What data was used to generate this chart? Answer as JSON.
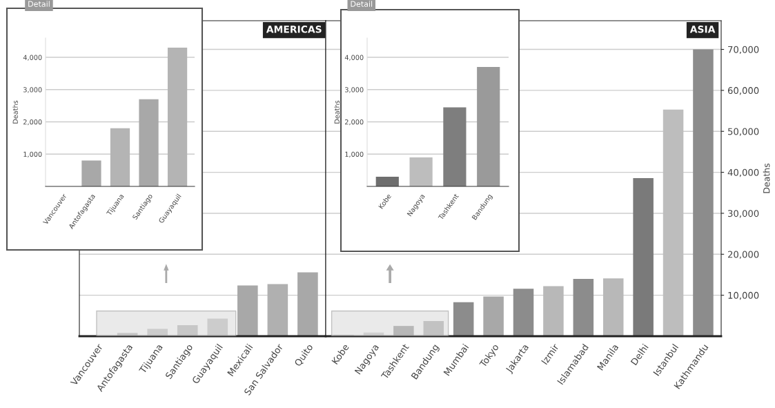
{
  "chart_data": [
    {
      "type": "bar",
      "title": "AMERICAS",
      "categories": [
        "Vancouver",
        "Antofagasta",
        "Tijuana",
        "Santiago",
        "Guayaquil",
        "Mexicali",
        "San Salvador",
        "Quito"
      ],
      "values": [
        0,
        800,
        1800,
        2700,
        4300,
        12400,
        12700,
        15600
      ],
      "colors": [
        "#b4b4b4",
        "#a8a8a8",
        "#b4b4b4",
        "#a8a8a8",
        "#b4b4b4",
        "#a8a8a8",
        "#b0b0b0",
        "#a8a8a8"
      ],
      "ylim": [
        0,
        77000
      ],
      "yticks": [
        10000,
        20000,
        30000,
        40000,
        50000,
        60000,
        70000
      ],
      "tick_labels": "x",
      "grid": "y"
    },
    {
      "type": "bar",
      "title": "ASIA",
      "ylabel": "Deaths",
      "categories": [
        "Kobe",
        "Nagoya",
        "Tashkent",
        "Bandung",
        "Mumbai",
        "Tokyo",
        "Jakarta",
        "Izmir",
        "Islamabad",
        "Manila",
        "Delhi",
        "Istanbul",
        "Kathmandu"
      ],
      "values": [
        300,
        900,
        2500,
        3700,
        8300,
        9700,
        11600,
        12200,
        14000,
        14100,
        38600,
        55300,
        70000
      ],
      "colors": [
        "#6e6e6e",
        "#bdbdbd",
        "#7e7e7e",
        "#9a9a9a",
        "#8c8c8c",
        "#a8a8a8",
        "#8c8c8c",
        "#b8b8b8",
        "#8c8c8c",
        "#b8b8b8",
        "#7a7a7a",
        "#bdbdbd",
        "#8c8c8c"
      ],
      "ylim": [
        0,
        77000
      ],
      "yticks": [
        {
          "value": 10000,
          "label": "10,000"
        },
        {
          "value": 20000,
          "label": "20,000"
        },
        {
          "value": 30000,
          "label": "30,000"
        },
        {
          "value": 40000,
          "label": "40,000"
        },
        {
          "value": 50000,
          "label": "50,000"
        },
        {
          "value": 60000,
          "label": "60,000"
        },
        {
          "value": 70000,
          "label": "70,000"
        }
      ],
      "grid": "y"
    },
    {
      "type": "bar",
      "title": "Detail",
      "ylabel": "Deaths",
      "categories": [
        "Vancouver",
        "Antofagasta",
        "Tijuana",
        "Santiago",
        "Guayaquil"
      ],
      "values": [
        null,
        800,
        1800,
        2700,
        4300
      ],
      "colors": [
        "#b4b4b4",
        "#a8a8a8",
        "#b4b4b4",
        "#a8a8a8",
        "#b4b4b4"
      ],
      "ylim": [
        0,
        4600
      ],
      "yticks": [
        {
          "value": 1000,
          "label": "1,000"
        },
        {
          "value": 2000,
          "label": "2,000"
        },
        {
          "value": 3000,
          "label": "3,000"
        },
        {
          "value": 4000,
          "label": "4,000"
        }
      ],
      "grid": "y"
    },
    {
      "type": "bar",
      "title": "Detail",
      "ylabel": "Deaths",
      "categories": [
        "Kobe",
        "Nagoya",
        "Tashkent",
        "Bandung"
      ],
      "values": [
        300,
        900,
        2450,
        3700
      ],
      "colors": [
        "#6e6e6e",
        "#bdbdbd",
        "#7e7e7e",
        "#9a9a9a"
      ],
      "ylim": [
        0,
        4600
      ],
      "yticks": [
        {
          "value": 1000,
          "label": "1,000"
        },
        {
          "value": 2000,
          "label": "2,000"
        },
        {
          "value": 3000,
          "label": "3,000"
        },
        {
          "value": 4000,
          "label": "4,000"
        }
      ],
      "grid": "y"
    }
  ]
}
